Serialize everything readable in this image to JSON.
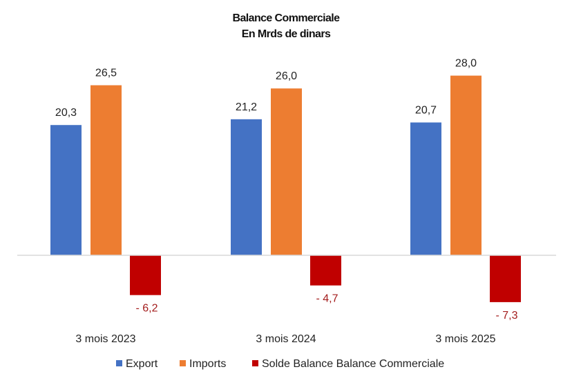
{
  "chart_data": {
    "type": "bar",
    "title": "Balance Commerciale",
    "subtitle": "En Mrds de dinars",
    "categories": [
      "3 mois 2023",
      "3 mois 2024",
      "3 mois 2025"
    ],
    "series": [
      {
        "name": "Export",
        "color": "#4472c4",
        "values": [
          20.3,
          21.2,
          20.7
        ],
        "labels": [
          "20,3",
          "21,2",
          "20,7"
        ]
      },
      {
        "name": "Imports",
        "color": "#ed7d31",
        "values": [
          26.5,
          26.0,
          28.0
        ],
        "labels": [
          "26,5",
          "26,0",
          "28,0"
        ]
      },
      {
        "name": "Solde Balance Balance Commerciale",
        "color": "#c00000",
        "values": [
          -6.2,
          -4.7,
          -7.3
        ],
        "labels": [
          "- 6,2",
          "- 4,7",
          "- 7,3"
        ]
      }
    ],
    "ylim": [
      -7.3,
      28.0
    ],
    "grid": false,
    "legend": "bottom"
  }
}
